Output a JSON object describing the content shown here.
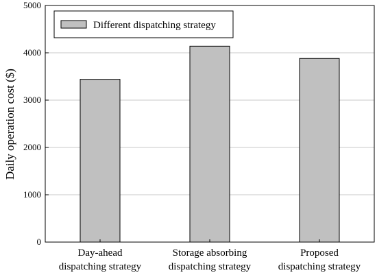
{
  "chart_data": {
    "type": "bar",
    "title": "",
    "xlabel": "",
    "ylabel": "Daily operation cost ($)",
    "categories": [
      [
        "Day-ahead",
        "dispatching strategy"
      ],
      [
        "Storage absorbing",
        "dispatching strategy"
      ],
      [
        "Proposed",
        "dispatching strategy"
      ]
    ],
    "series": [
      {
        "name": "Different dispatching strategy",
        "values": [
          3440,
          4140,
          3880
        ],
        "color": "#c0c0c0"
      }
    ],
    "ylim": [
      0,
      5000
    ],
    "yticks": [
      0,
      1000,
      2000,
      3000,
      4000,
      5000
    ],
    "grid": "horizontal",
    "legend": "top-left"
  }
}
